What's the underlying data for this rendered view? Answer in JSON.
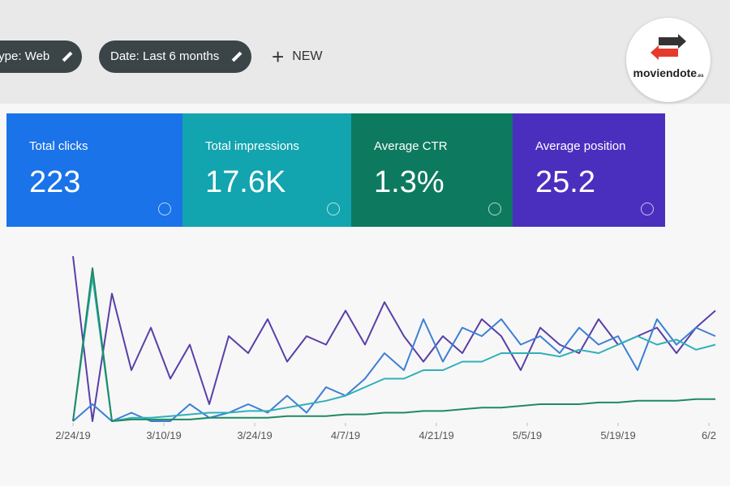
{
  "toolbar": {
    "filters": [
      "type: Web",
      "Date: Last 6 months"
    ],
    "new": "NEW"
  },
  "logo": {
    "name": "moviendote",
    "suffix": ".es"
  },
  "cards": [
    {
      "label": "Total clicks",
      "value": "223",
      "color": "#1a73e8"
    },
    {
      "label": "Total impressions",
      "value": "17.6K",
      "color": "#12a4af"
    },
    {
      "label": "Average CTR",
      "value": "1.3%",
      "color": "#0d7a5f"
    },
    {
      "label": "Average position",
      "value": "25.2",
      "color": "#4a2fbf"
    }
  ],
  "chart_data": {
    "type": "line",
    "x": [
      0,
      3,
      6,
      9,
      12,
      15,
      18,
      21,
      24,
      27,
      30,
      33,
      36,
      39,
      42,
      45,
      48,
      51,
      54,
      57,
      60,
      63,
      66,
      69,
      72,
      75,
      78,
      81,
      84,
      87,
      90,
      93,
      96,
      99
    ],
    "xlim": [
      -1,
      101
    ],
    "xticks": [
      {
        "value": 0,
        "label": "2/24/19"
      },
      {
        "value": 14,
        "label": "3/10/19"
      },
      {
        "value": 28,
        "label": "3/24/19"
      },
      {
        "value": 42,
        "label": "4/7/19"
      },
      {
        "value": 56,
        "label": "4/21/19"
      },
      {
        "value": 70,
        "label": "5/5/19"
      },
      {
        "value": 84,
        "label": "5/19/19"
      },
      {
        "value": 98,
        "label": "6/2"
      }
    ],
    "ylim": [
      0,
      100
    ],
    "series": [
      {
        "color": "#5a3ea8",
        "values": [
          97,
          0,
          75,
          30,
          55,
          25,
          45,
          10,
          50,
          40,
          60,
          35,
          50,
          45,
          65,
          45,
          70,
          50,
          35,
          50,
          40,
          60,
          50,
          30,
          55,
          45,
          40,
          60,
          45,
          50,
          55,
          40,
          55,
          65
        ]
      },
      {
        "color": "#3d7fd6",
        "values": [
          0,
          10,
          0,
          5,
          0,
          0,
          10,
          2,
          5,
          10,
          5,
          15,
          5,
          20,
          15,
          25,
          40,
          30,
          60,
          35,
          55,
          50,
          60,
          45,
          50,
          40,
          55,
          45,
          50,
          30,
          60,
          45,
          55,
          50
        ]
      },
      {
        "color": "#2fb0b8",
        "values": [
          0,
          85,
          0,
          2,
          2,
          3,
          4,
          5,
          5,
          6,
          6,
          8,
          10,
          12,
          15,
          20,
          25,
          25,
          30,
          30,
          35,
          35,
          40,
          40,
          40,
          38,
          42,
          40,
          45,
          50,
          45,
          48,
          42,
          45
        ]
      },
      {
        "color": "#1f8a63",
        "values": [
          0,
          90,
          0,
          1,
          1,
          1,
          1,
          2,
          2,
          2,
          2,
          3,
          3,
          3,
          4,
          4,
          5,
          5,
          6,
          6,
          7,
          8,
          8,
          9,
          10,
          10,
          10,
          11,
          11,
          12,
          12,
          12,
          13,
          13
        ]
      }
    ]
  }
}
